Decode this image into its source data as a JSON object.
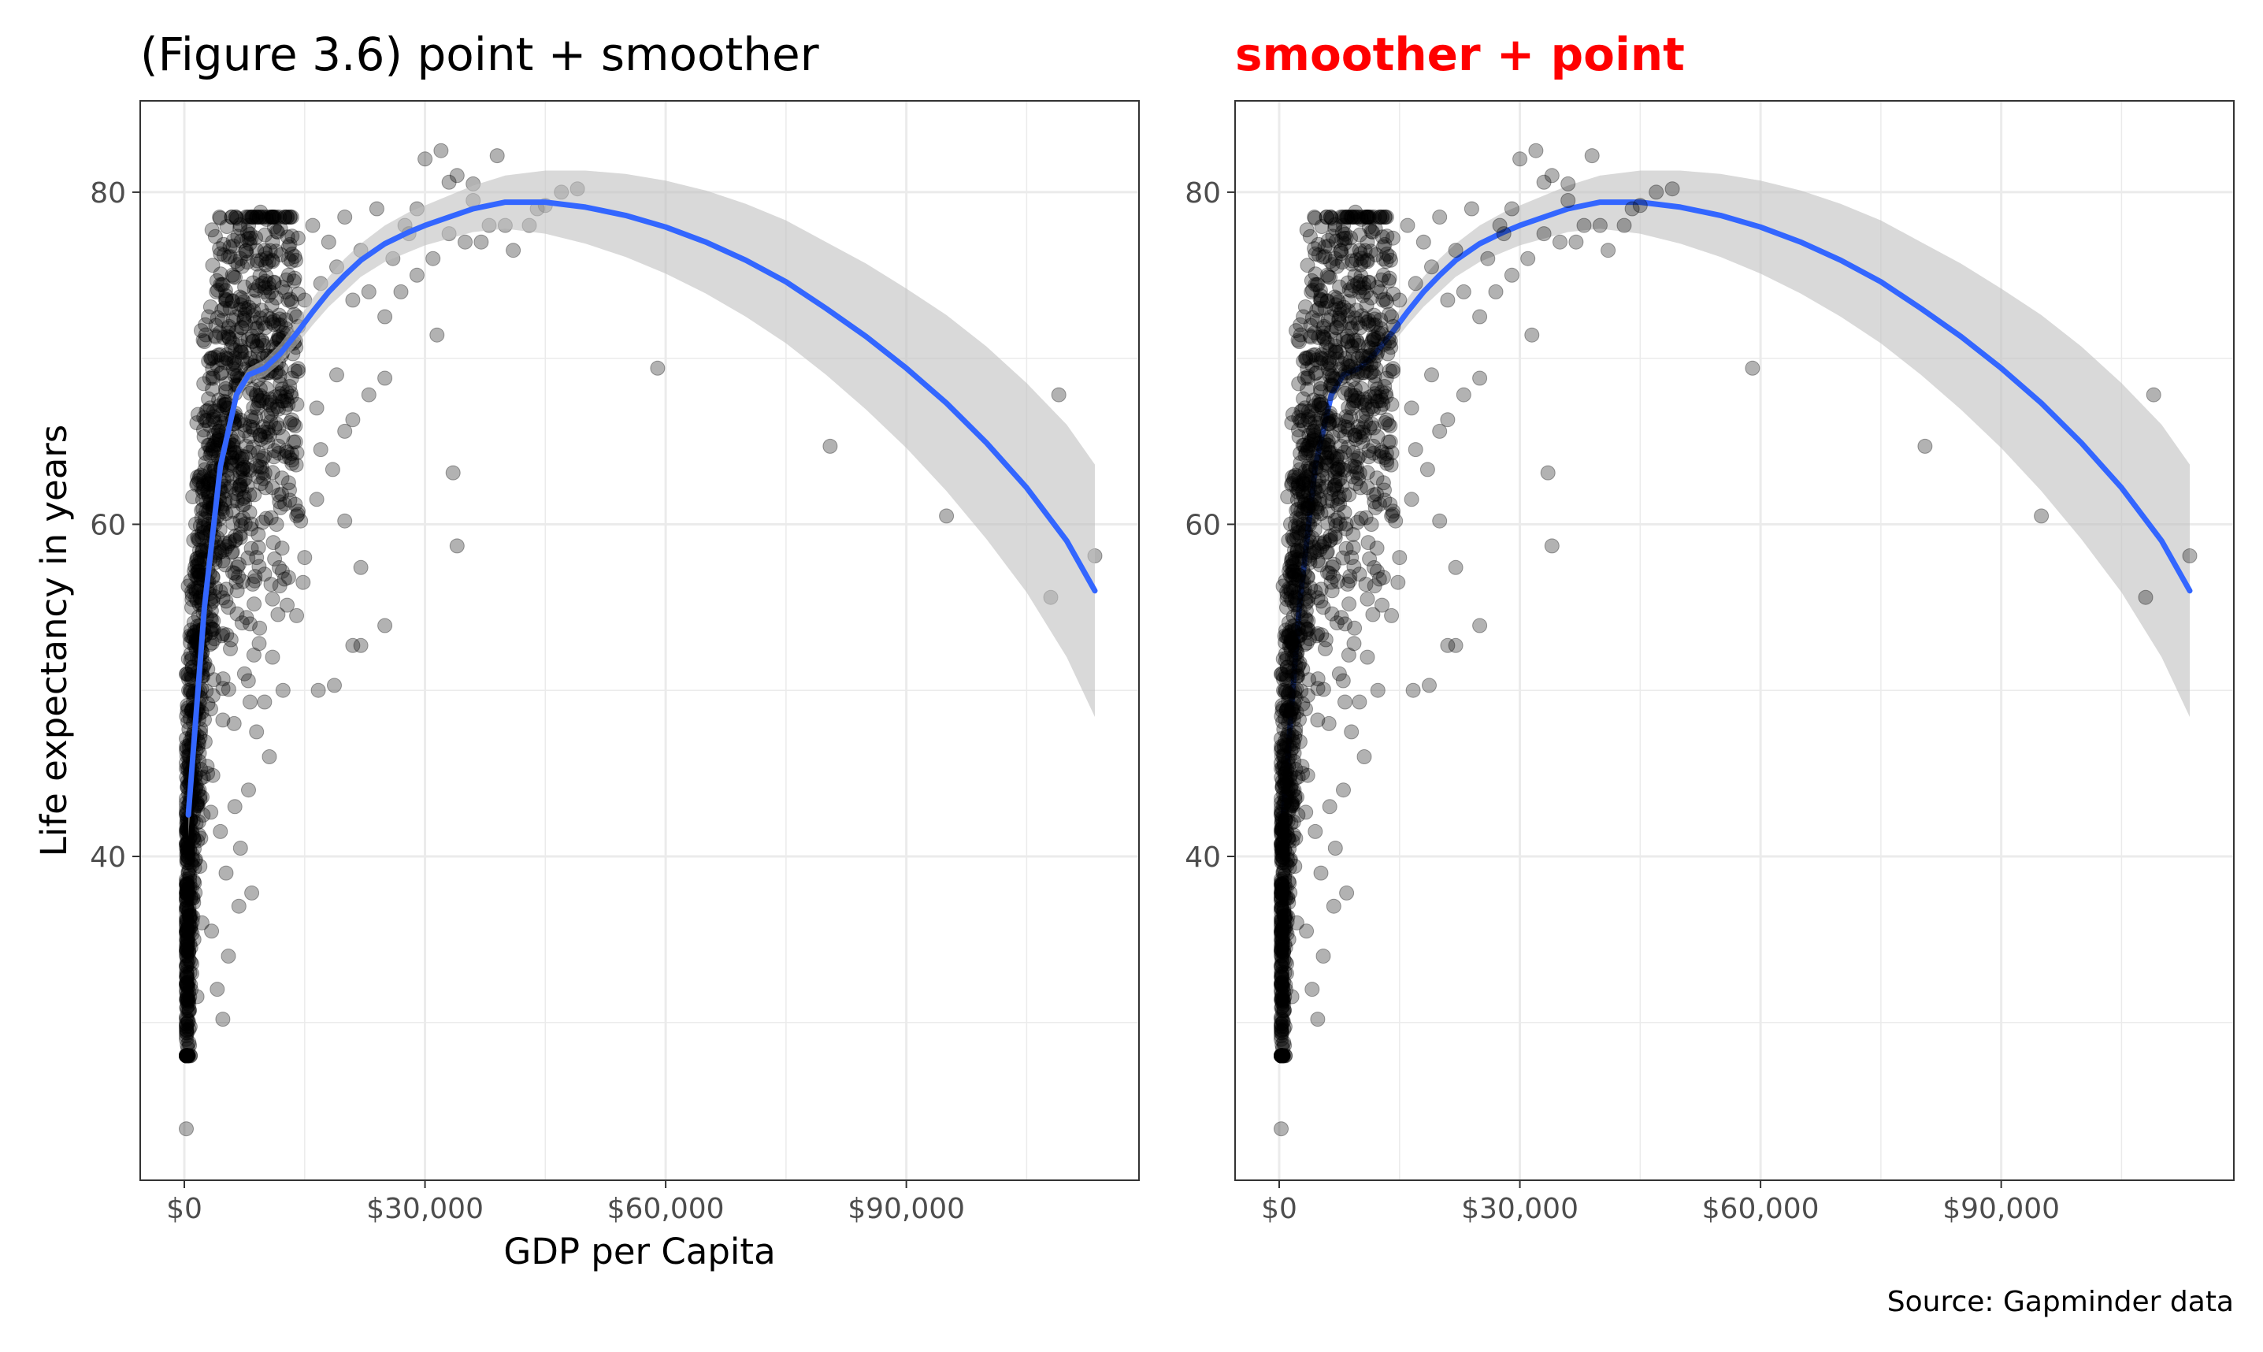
{
  "caption": "Source: Gapminder data",
  "colors": {
    "point": "#000000",
    "smoother": "#3366ff",
    "ribbon": "#bfbfbf",
    "right_title": "#ff0000",
    "grid": "#ebebeb",
    "tick_text": "#4d4d4d"
  },
  "chart_data": [
    {
      "type": "scatter",
      "title": "(Figure 3.6) point + smoother",
      "xlabel": "GDP per Capita",
      "ylabel": "Life expectancy in years",
      "xlim": [
        -5500,
        119000
      ],
      "ylim": [
        20.5,
        85.5
      ],
      "x_ticks": [
        0,
        30000,
        60000,
        90000
      ],
      "x_tick_labels": [
        "$0",
        "$30,000",
        "$60,000",
        "$90,000"
      ],
      "y_ticks": [
        40,
        60,
        80
      ],
      "y_tick_labels": [
        "40",
        "60",
        "80"
      ],
      "grid": true,
      "layer_order": "points_below_smoother"
    },
    {
      "type": "scatter",
      "title": "smoother + point",
      "xlabel": "",
      "ylabel": "",
      "xlim": [
        -5500,
        119000
      ],
      "ylim": [
        20.5,
        85.5
      ],
      "x_ticks": [
        0,
        30000,
        60000,
        90000
      ],
      "x_tick_labels": [
        "$0",
        "$30,000",
        "$60,000",
        "$90,000"
      ],
      "y_ticks": [
        40,
        60,
        80
      ],
      "y_tick_labels": [
        "40",
        "60",
        "80"
      ],
      "grid": true,
      "layer_order": "smoother_below_points"
    }
  ],
  "points": [
    [
      241,
      23.6
    ],
    [
      567,
      28.8
    ],
    [
      487,
      30.0
    ],
    [
      4800,
      30.2
    ],
    [
      4100,
      32.0
    ],
    [
      700,
      33.0
    ],
    [
      1200,
      35.0
    ],
    [
      2200,
      36.0
    ],
    [
      3400,
      35.5
    ],
    [
      5500,
      34.0
    ],
    [
      6800,
      37.0
    ],
    [
      8400,
      37.8
    ],
    [
      5200,
      39.0
    ],
    [
      7000,
      40.5
    ],
    [
      4500,
      41.5
    ],
    [
      6300,
      43.0
    ],
    [
      8000,
      44.0
    ],
    [
      2900,
      45.0
    ],
    [
      10600,
      46.0
    ],
    [
      9000,
      47.5
    ],
    [
      6200,
      48.0
    ],
    [
      8200,
      49.3
    ],
    [
      10000,
      49.3
    ],
    [
      12300,
      50.0
    ],
    [
      16700,
      50.0
    ],
    [
      18700,
      50.3
    ],
    [
      7500,
      51.0
    ],
    [
      11000,
      52.0
    ],
    [
      21000,
      52.7
    ],
    [
      22000,
      52.7
    ],
    [
      25000,
      53.9
    ],
    [
      8200,
      54.0
    ],
    [
      14000,
      54.5
    ],
    [
      5500,
      55.0
    ],
    [
      8700,
      55.2
    ],
    [
      11000,
      55.5
    ],
    [
      6600,
      56.0
    ],
    [
      12500,
      56.7
    ],
    [
      13000,
      56.8
    ],
    [
      14800,
      56.5
    ],
    [
      10000,
      57.0
    ],
    [
      15000,
      58.0
    ],
    [
      22000,
      57.4
    ],
    [
      34000,
      58.7
    ],
    [
      9000,
      58.0
    ],
    [
      7000,
      59.2
    ],
    [
      11500,
      60.0
    ],
    [
      14000,
      60.5
    ],
    [
      14500,
      60.2
    ],
    [
      20000,
      60.2
    ],
    [
      12000,
      61.0
    ],
    [
      16500,
      61.5
    ],
    [
      13000,
      62.5
    ],
    [
      18500,
      63.3
    ],
    [
      33500,
      63.1
    ],
    [
      9000,
      63.5
    ],
    [
      17000,
      64.5
    ],
    [
      20000,
      65.6
    ],
    [
      21000,
      66.3
    ],
    [
      16500,
      67.0
    ],
    [
      23000,
      67.8
    ],
    [
      25000,
      68.8
    ],
    [
      19000,
      69.0
    ],
    [
      59000,
      69.4
    ],
    [
      31500,
      71.4
    ],
    [
      80500,
      64.7
    ],
    [
      95000,
      60.5
    ],
    [
      108000,
      55.6
    ],
    [
      109000,
      67.8
    ],
    [
      113500,
      58.1
    ],
    [
      36000,
      79.5
    ],
    [
      40000,
      78.0
    ],
    [
      47000,
      80.0
    ],
    [
      49000,
      80.2
    ],
    [
      38000,
      78.0
    ],
    [
      35000,
      77.0
    ],
    [
      29000,
      79.0
    ],
    [
      27500,
      78.0
    ],
    [
      33000,
      80.6
    ],
    [
      30000,
      82.0
    ],
    [
      32000,
      82.5
    ],
    [
      34000,
      81.0
    ],
    [
      36000,
      80.5
    ],
    [
      39000,
      82.2
    ],
    [
      44000,
      79.0
    ],
    [
      26000,
      76.0
    ],
    [
      28000,
      77.5
    ],
    [
      22000,
      76.5
    ],
    [
      24000,
      79.0
    ],
    [
      20000,
      78.5
    ],
    [
      18000,
      77.0
    ],
    [
      16000,
      78.0
    ],
    [
      13000,
      75.0
    ],
    [
      15000,
      73.5
    ],
    [
      12000,
      72.0
    ],
    [
      10000,
      74.0
    ],
    [
      9000,
      76.5
    ],
    [
      8000,
      78.0
    ],
    [
      9500,
      78.8
    ],
    [
      11000,
      77.0
    ],
    [
      7000,
      76.0
    ],
    [
      6000,
      75.0
    ],
    [
      5000,
      73.0
    ],
    [
      4000,
      74.0
    ],
    [
      3000,
      72.5
    ],
    [
      2500,
      71.0
    ],
    [
      3500,
      70.0
    ],
    [
      5500,
      71.5
    ],
    [
      6500,
      72.5
    ],
    [
      7500,
      73.0
    ],
    [
      8500,
      71.0
    ],
    [
      14000,
      72.5
    ],
    [
      17000,
      74.5
    ],
    [
      19000,
      75.5
    ],
    [
      21000,
      73.5
    ],
    [
      23000,
      74.0
    ],
    [
      25000,
      72.5
    ],
    [
      27000,
      74.0
    ],
    [
      29000,
      75.0
    ],
    [
      31000,
      76.0
    ],
    [
      33000,
      77.5
    ],
    [
      37000,
      77.0
    ],
    [
      41000,
      76.5
    ],
    [
      43000,
      78.0
    ],
    [
      45000,
      79.2
    ]
  ]
}
